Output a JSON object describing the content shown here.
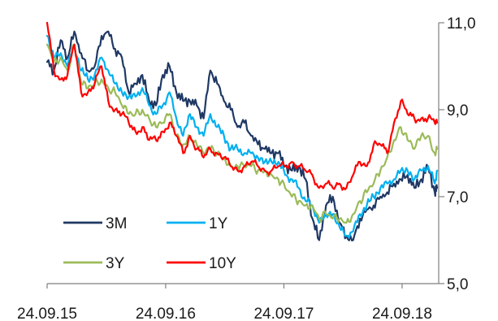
{
  "chart_data": {
    "type": "line",
    "title": "",
    "xlabel": "",
    "ylabel": "",
    "ylim": [
      5.0,
      11.0
    ],
    "y_ticks": [
      "5,0",
      "7,0",
      "9,0",
      "11,0"
    ],
    "y_axis_side": "right",
    "x_range": [
      "2015-09-24",
      "2019-01-15"
    ],
    "x_tick_dates": [
      "2015-09-24",
      "2016-09-24",
      "2017-09-24",
      "2018-09-24"
    ],
    "x_tick_labels": [
      "24.09.15",
      "24.09.16",
      "24.09.17",
      "24.09.18"
    ],
    "grid": false,
    "legend_position": "lower-left",
    "series": [
      {
        "name": "3M",
        "color": "#1f3864",
        "x": [
          "2015-09-24",
          "2015-10-15",
          "2015-11-05",
          "2015-11-26",
          "2015-12-17",
          "2016-01-07",
          "2016-01-28",
          "2016-02-18",
          "2016-03-10",
          "2016-03-31",
          "2016-04-21",
          "2016-05-12",
          "2016-06-02",
          "2016-06-23",
          "2016-07-14",
          "2016-08-04",
          "2016-08-25",
          "2016-09-15",
          "2016-10-06",
          "2016-10-27",
          "2016-11-17",
          "2016-12-08",
          "2016-12-29",
          "2017-01-19",
          "2017-02-09",
          "2017-03-02",
          "2017-03-23",
          "2017-04-13",
          "2017-05-04",
          "2017-05-25",
          "2017-06-15",
          "2017-07-06",
          "2017-07-27",
          "2017-08-17",
          "2017-09-07",
          "2017-09-28",
          "2017-10-19",
          "2017-11-09",
          "2017-11-30",
          "2017-12-21",
          "2018-01-11",
          "2018-02-01",
          "2018-02-22",
          "2018-03-15",
          "2018-04-05",
          "2018-04-26",
          "2018-05-17",
          "2018-06-07",
          "2018-06-28",
          "2018-07-19",
          "2018-08-09",
          "2018-08-30",
          "2018-09-20",
          "2018-10-11",
          "2018-11-01",
          "2018-11-22",
          "2018-12-13",
          "2019-01-03",
          "2019-01-10"
        ],
        "values": [
          10.1,
          9.9,
          10.6,
          10.2,
          10.8,
          10.3,
          9.9,
          10.0,
          10.7,
          10.8,
          10.4,
          10.2,
          9.4,
          9.6,
          9.8,
          9.2,
          9.1,
          9.8,
          10.0,
          9.4,
          9.2,
          9.2,
          9.1,
          8.8,
          9.9,
          9.6,
          9.2,
          9.0,
          8.6,
          8.7,
          8.4,
          8.2,
          8.1,
          8.0,
          8.0,
          7.7,
          7.6,
          7.7,
          7.4,
          6.5,
          6.0,
          6.8,
          7.0,
          6.4,
          6.1,
          6.0,
          6.5,
          6.7,
          6.8,
          7.0,
          7.1,
          7.3,
          7.4,
          7.5,
          7.2,
          7.4,
          7.7,
          7.1,
          7.2
        ]
      },
      {
        "name": "1Y",
        "color": "#00b0f0",
        "x": [
          "2015-09-24",
          "2015-10-15",
          "2015-11-05",
          "2015-11-26",
          "2015-12-17",
          "2016-01-07",
          "2016-01-28",
          "2016-02-18",
          "2016-03-10",
          "2016-03-31",
          "2016-04-21",
          "2016-05-12",
          "2016-06-02",
          "2016-06-23",
          "2016-07-14",
          "2016-08-04",
          "2016-08-25",
          "2016-09-15",
          "2016-10-06",
          "2016-10-27",
          "2016-11-17",
          "2016-12-08",
          "2016-12-29",
          "2017-01-19",
          "2017-02-09",
          "2017-03-02",
          "2017-03-23",
          "2017-04-13",
          "2017-05-04",
          "2017-05-25",
          "2017-06-15",
          "2017-07-06",
          "2017-07-27",
          "2017-08-17",
          "2017-09-07",
          "2017-09-28",
          "2017-10-19",
          "2017-11-09",
          "2017-11-30",
          "2017-12-21",
          "2018-01-11",
          "2018-02-01",
          "2018-02-22",
          "2018-03-15",
          "2018-04-05",
          "2018-04-26",
          "2018-05-17",
          "2018-06-07",
          "2018-06-28",
          "2018-07-19",
          "2018-08-09",
          "2018-08-30",
          "2018-09-20",
          "2018-10-11",
          "2018-11-01",
          "2018-11-22",
          "2018-12-13",
          "2019-01-03",
          "2019-01-10"
        ],
        "values": [
          10.7,
          10.2,
          10.3,
          10.0,
          10.5,
          9.9,
          9.7,
          9.8,
          10.2,
          9.9,
          9.6,
          9.4,
          9.3,
          9.3,
          9.5,
          9.1,
          8.9,
          9.1,
          9.4,
          8.8,
          8.4,
          8.9,
          8.6,
          8.4,
          8.9,
          8.6,
          8.4,
          8.1,
          8.1,
          8.0,
          8.0,
          7.9,
          7.8,
          7.8,
          7.8,
          7.5,
          7.4,
          7.2,
          6.9,
          6.8,
          6.4,
          6.6,
          6.6,
          6.3,
          6.1,
          6.2,
          6.6,
          6.8,
          7.0,
          7.2,
          7.3,
          7.4,
          7.6,
          7.6,
          7.4,
          7.6,
          7.7,
          7.3,
          7.6
        ]
      },
      {
        "name": "3Y",
        "color": "#9bbb59",
        "x": [
          "2015-09-24",
          "2015-10-15",
          "2015-11-05",
          "2015-11-26",
          "2015-12-17",
          "2016-01-07",
          "2016-01-28",
          "2016-02-18",
          "2016-03-10",
          "2016-03-31",
          "2016-04-21",
          "2016-05-12",
          "2016-06-02",
          "2016-06-23",
          "2016-07-14",
          "2016-08-04",
          "2016-08-25",
          "2016-09-15",
          "2016-10-06",
          "2016-10-27",
          "2016-11-17",
          "2016-12-08",
          "2016-12-29",
          "2017-01-19",
          "2017-02-09",
          "2017-03-02",
          "2017-03-23",
          "2017-04-13",
          "2017-05-04",
          "2017-05-25",
          "2017-06-15",
          "2017-07-06",
          "2017-07-27",
          "2017-08-17",
          "2017-09-07",
          "2017-09-28",
          "2017-10-19",
          "2017-11-09",
          "2017-11-30",
          "2017-12-21",
          "2018-01-11",
          "2018-02-01",
          "2018-02-22",
          "2018-03-15",
          "2018-04-05",
          "2018-04-26",
          "2018-05-17",
          "2018-06-07",
          "2018-06-28",
          "2018-07-19",
          "2018-08-09",
          "2018-08-30",
          "2018-09-20",
          "2018-10-11",
          "2018-11-01",
          "2018-11-22",
          "2018-12-13",
          "2019-01-03",
          "2019-01-10"
        ],
        "values": [
          10.5,
          10.1,
          10.2,
          9.9,
          10.5,
          9.6,
          9.5,
          9.6,
          9.7,
          9.5,
          9.4,
          9.1,
          8.9,
          8.9,
          9.0,
          8.8,
          8.6,
          8.7,
          8.9,
          8.4,
          8.2,
          8.4,
          8.2,
          8.0,
          8.1,
          8.0,
          7.9,
          7.7,
          7.7,
          7.7,
          7.7,
          7.6,
          7.6,
          7.5,
          7.4,
          7.2,
          7.0,
          6.9,
          6.8,
          6.8,
          6.5,
          6.6,
          6.5,
          6.5,
          6.4,
          6.6,
          6.9,
          7.1,
          7.3,
          7.6,
          7.9,
          8.3,
          8.6,
          8.3,
          8.1,
          8.4,
          8.4,
          8.0,
          8.1
        ]
      },
      {
        "name": "10Y",
        "color": "#ff0000",
        "x": [
          "2015-09-24",
          "2015-10-15",
          "2015-11-05",
          "2015-11-26",
          "2015-12-17",
          "2016-01-07",
          "2016-01-28",
          "2016-02-18",
          "2016-03-10",
          "2016-03-31",
          "2016-04-21",
          "2016-05-12",
          "2016-06-02",
          "2016-06-23",
          "2016-07-14",
          "2016-08-04",
          "2016-08-25",
          "2016-09-15",
          "2016-10-06",
          "2016-10-27",
          "2016-11-17",
          "2016-12-08",
          "2016-12-29",
          "2017-01-19",
          "2017-02-09",
          "2017-03-02",
          "2017-03-23",
          "2017-04-13",
          "2017-05-04",
          "2017-05-25",
          "2017-06-15",
          "2017-07-06",
          "2017-07-27",
          "2017-08-17",
          "2017-09-07",
          "2017-09-28",
          "2017-10-19",
          "2017-11-09",
          "2017-11-30",
          "2017-12-21",
          "2018-01-11",
          "2018-02-01",
          "2018-02-22",
          "2018-03-15",
          "2018-04-05",
          "2018-04-26",
          "2018-05-17",
          "2018-06-07",
          "2018-06-28",
          "2018-07-19",
          "2018-08-09",
          "2018-08-30",
          "2018-09-20",
          "2018-10-11",
          "2018-11-01",
          "2018-11-22",
          "2018-12-13",
          "2019-01-03",
          "2019-01-10"
        ],
        "values": [
          11.0,
          9.9,
          9.7,
          9.8,
          10.5,
          9.4,
          9.4,
          9.6,
          10.0,
          9.2,
          9.0,
          8.9,
          8.7,
          8.5,
          8.6,
          8.3,
          8.3,
          8.5,
          8.7,
          8.4,
          8.0,
          8.4,
          8.1,
          7.9,
          8.1,
          8.0,
          7.9,
          7.7,
          7.6,
          7.7,
          7.8,
          7.7,
          7.6,
          7.6,
          7.7,
          7.7,
          7.8,
          7.7,
          7.6,
          7.5,
          7.2,
          7.3,
          7.2,
          7.3,
          7.2,
          7.5,
          7.8,
          7.7,
          8.2,
          8.2,
          8.0,
          8.7,
          9.2,
          8.9,
          8.8,
          8.8,
          8.8,
          8.7,
          8.7
        ]
      }
    ]
  }
}
